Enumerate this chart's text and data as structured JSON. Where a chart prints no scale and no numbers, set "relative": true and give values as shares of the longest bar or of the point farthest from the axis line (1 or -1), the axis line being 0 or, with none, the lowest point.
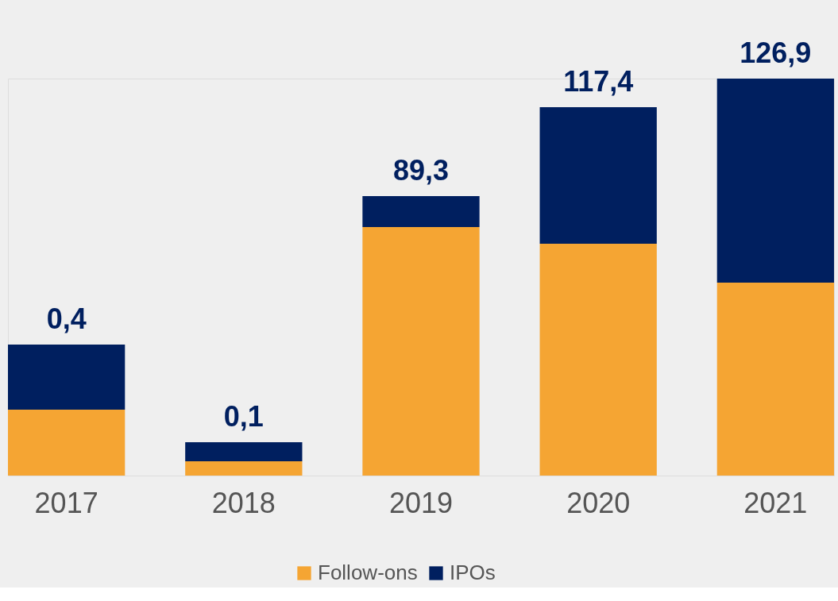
{
  "chart_data": {
    "type": "bar",
    "stacked": true,
    "relative": true,
    "categories": [
      "2017",
      "2018",
      "2019",
      "2020",
      "2021"
    ],
    "series": [
      {
        "name": "Follow-ons",
        "color": "#f5a533",
        "values": [
          0.166,
          0.036,
          0.626,
          0.584,
          0.486
        ]
      },
      {
        "name": "IPOs",
        "color": "#001f5f",
        "values": [
          0.164,
          0.048,
          0.078,
          0.344,
          0.514
        ]
      }
    ],
    "annotations": [
      {
        "text": "0,4",
        "x": "2017",
        "y": 0.33
      },
      {
        "text": "0,1",
        "x": "2018",
        "y": 0.084
      },
      {
        "text": "89,3",
        "x": "2019",
        "y": 0.704
      },
      {
        "text": "117,4",
        "x": "2020",
        "y": 0.928
      },
      {
        "text": "126,9",
        "x": "2021",
        "y": 1.0
      }
    ],
    "legend": "bottom",
    "grid": false
  }
}
